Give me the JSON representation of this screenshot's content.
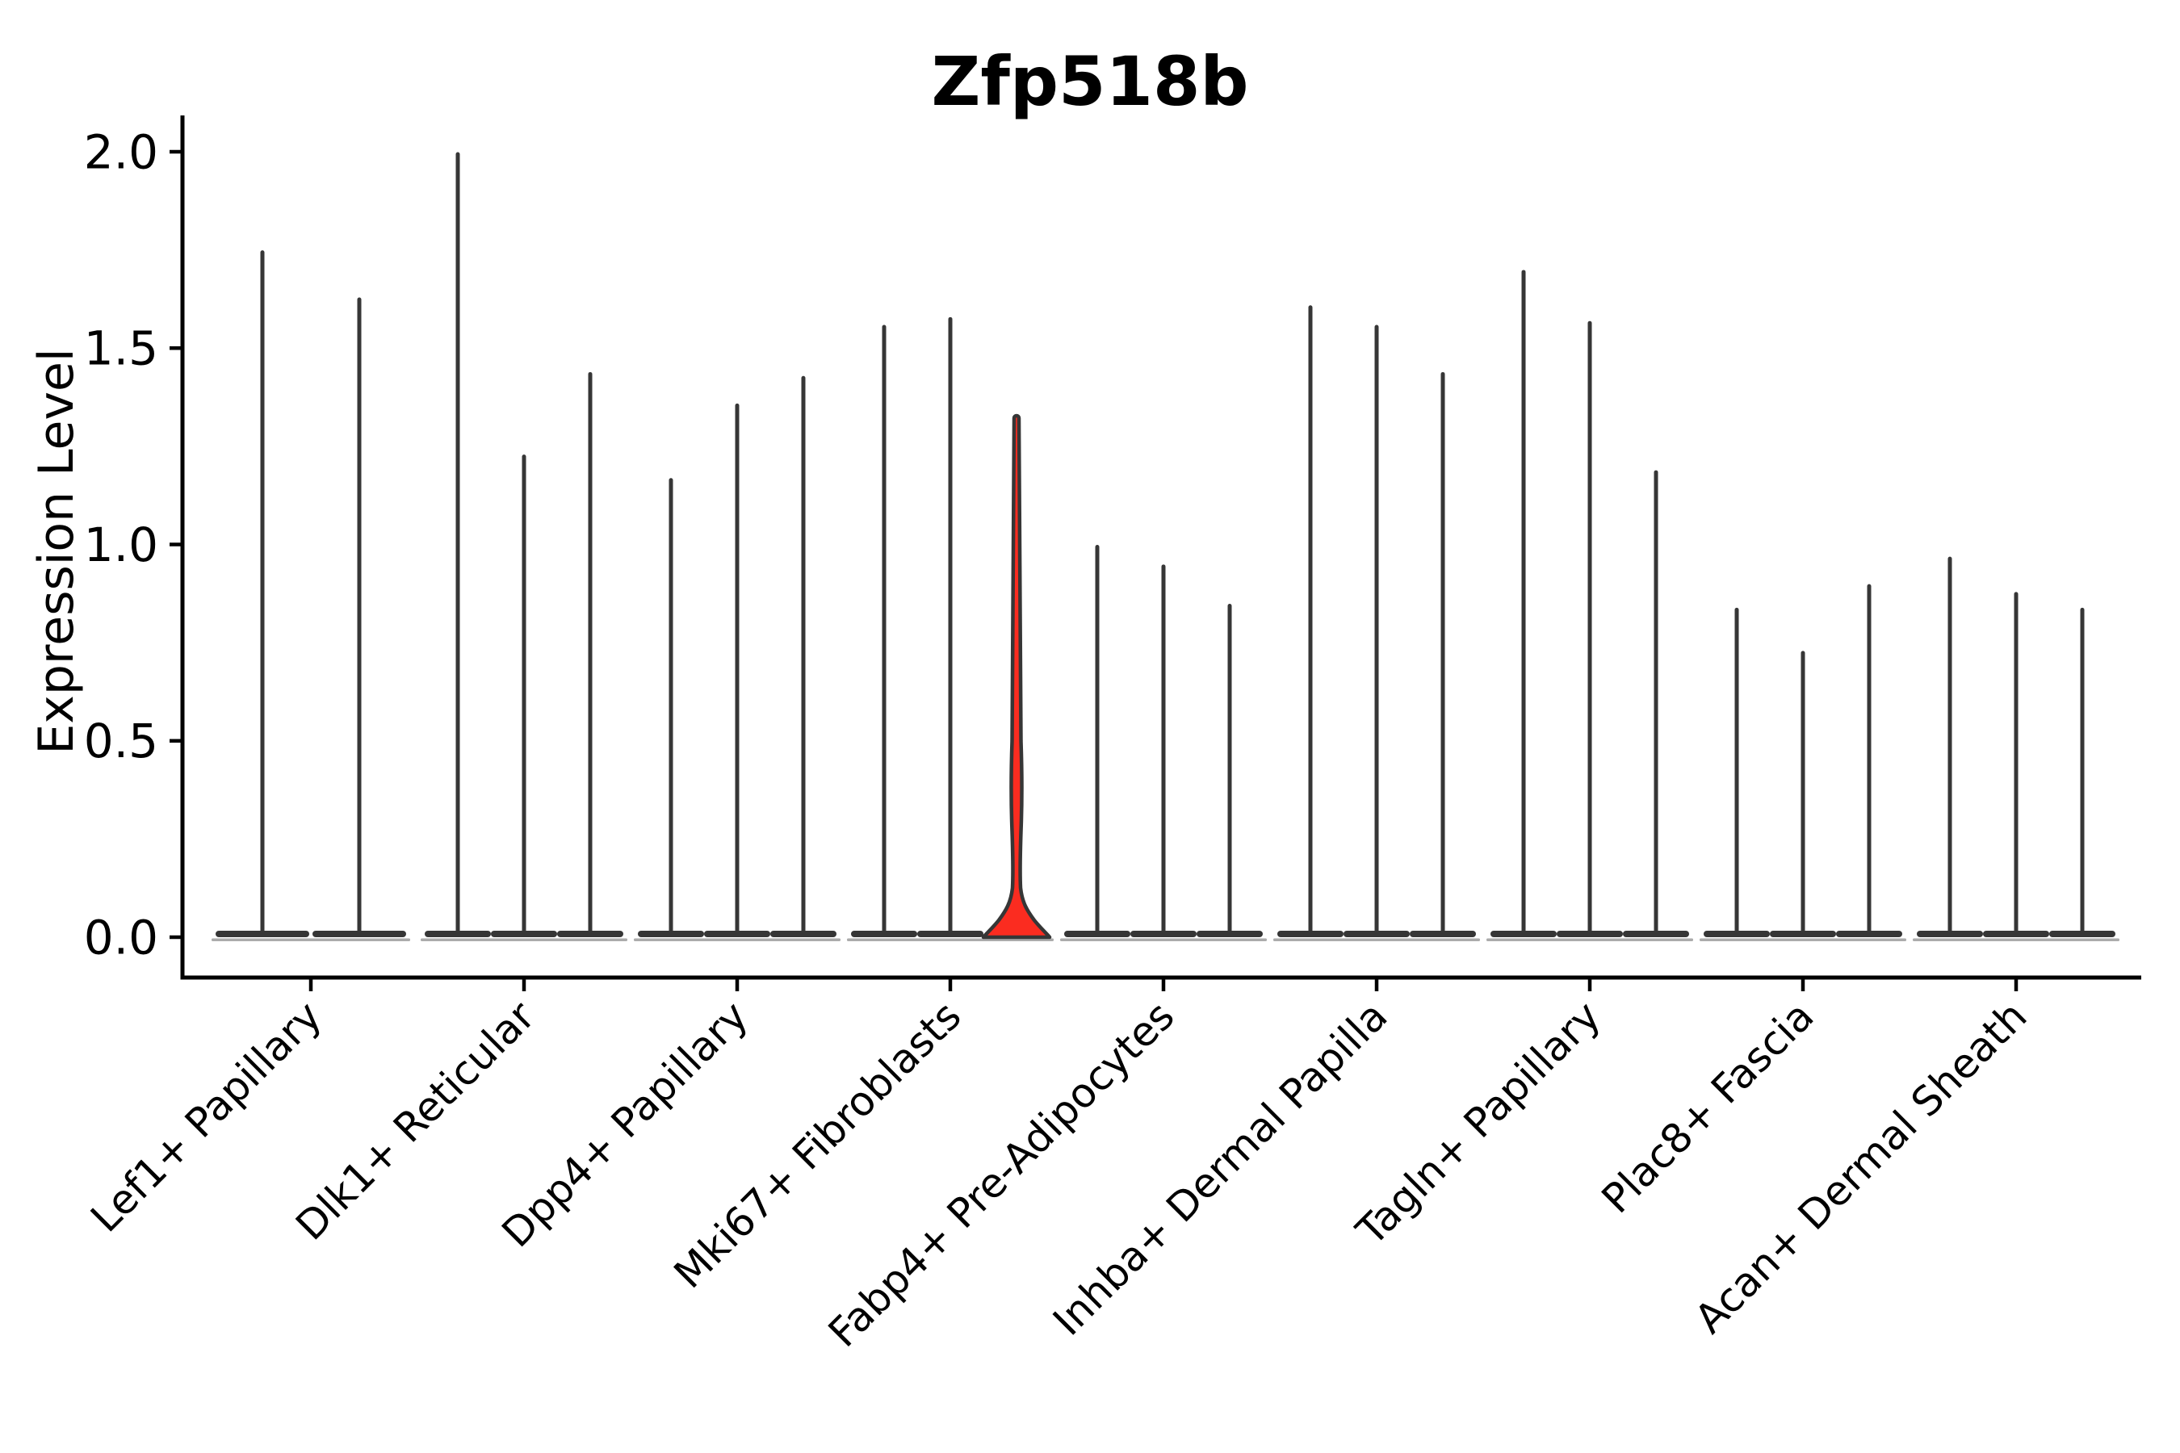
{
  "title": "Zfp518b",
  "ylabel": "Expression Level",
  "chart_data": {
    "type": "violin",
    "title": "Zfp518b",
    "xlabel": "",
    "ylabel": "Expression Level",
    "ylim": [
      0,
      2.05
    ],
    "yticks": [
      0.0,
      0.5,
      1.0,
      1.5,
      2.0
    ],
    "ytick_labels": [
      "0.0",
      "0.5",
      "1.0",
      "1.5",
      "2.0"
    ],
    "grid": false,
    "legend": "none",
    "axis_color": "#000000",
    "violin_outline_color": "#363636",
    "violin_base_shadow_color": "#9c9c9c",
    "highlight_fill_color": "#fb2c20",
    "description": "Thin spike-shaped violins of gene expression per fibroblast subcluster; one violin (3rd of Mki67+ Fibroblasts) is filled red with a visible density bulge near zero and a slim bulge between 0.25 and 0.5.",
    "groups": [
      {
        "label": "Lef1+ Papillary",
        "violins": [
          {
            "max": 1.75
          },
          {
            "max": 1.63
          }
        ]
      },
      {
        "label": "Dlk1+ Reticular",
        "violins": [
          {
            "max": 2.0
          },
          {
            "max": 1.23
          },
          {
            "max": 1.44
          }
        ]
      },
      {
        "label": "Dpp4+ Papillary",
        "violins": [
          {
            "max": 1.17
          },
          {
            "max": 1.36
          },
          {
            "max": 1.43
          }
        ]
      },
      {
        "label": "Mki67+ Fibroblasts",
        "violins": [
          {
            "max": 1.56
          },
          {
            "max": 1.58
          },
          {
            "max": 1.33,
            "highlight": true,
            "bulge_range": [
              0.25,
              0.5
            ]
          }
        ]
      },
      {
        "label": "Fabp4+ Pre-Adipocytes",
        "violins": [
          {
            "max": 1.0
          },
          {
            "max": 0.95
          },
          {
            "max": 0.85
          }
        ]
      },
      {
        "label": "Inhba+ Dermal Papilla",
        "violins": [
          {
            "max": 1.61
          },
          {
            "max": 1.56
          },
          {
            "max": 1.44
          }
        ]
      },
      {
        "label": "Tagln+ Papillary",
        "violins": [
          {
            "max": 1.7
          },
          {
            "max": 1.57
          },
          {
            "max": 1.19
          }
        ]
      },
      {
        "label": "Plac8+ Fascia",
        "violins": [
          {
            "max": 0.84
          },
          {
            "max": 0.73
          },
          {
            "max": 0.9
          }
        ]
      },
      {
        "label": "Acan+ Dermal Sheath",
        "violins": [
          {
            "max": 0.97
          },
          {
            "max": 0.88
          },
          {
            "max": 0.84
          }
        ]
      }
    ]
  }
}
